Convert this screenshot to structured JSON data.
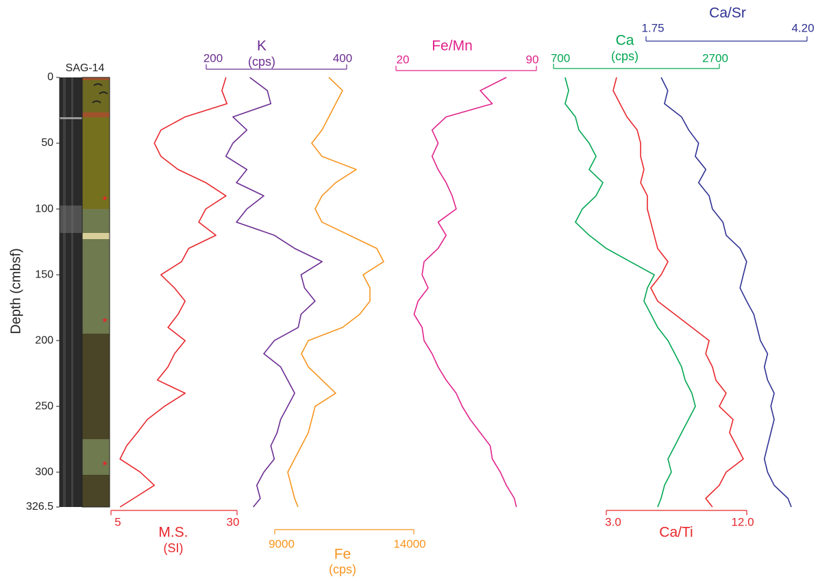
{
  "chart_data": {
    "type": "line",
    "core_label": "SAG-14",
    "ylabel": "Depth (cmbsf)",
    "ylim": [
      0,
      326.5
    ],
    "y_inverted": true,
    "yticks": [
      0,
      50,
      100,
      150,
      200,
      250,
      300,
      326.5
    ],
    "depth": [
      0,
      10,
      20,
      30,
      40,
      50,
      60,
      70,
      80,
      90,
      100,
      110,
      120,
      130,
      140,
      150,
      160,
      170,
      180,
      190,
      200,
      210,
      220,
      230,
      240,
      250,
      260,
      270,
      280,
      290,
      300,
      310,
      320,
      326.5
    ],
    "series": [
      {
        "name": "M.S.",
        "unit": "(SI)",
        "color": "#e8262b",
        "xlim": [
          5,
          30
        ],
        "xticks": [
          5,
          30
        ],
        "values": [
          27.8,
          27,
          28,
          19.7,
          14.9,
          13.6,
          14.9,
          18.3,
          23.8,
          27.8,
          23.8,
          22.4,
          25.8,
          20.4,
          19,
          14.9,
          17.6,
          19.7,
          18.3,
          16.3,
          19.7,
          17.6,
          16.3,
          14.2,
          19.7,
          15.6,
          12.2,
          10.2,
          8.1,
          6.8,
          10.8,
          13.6,
          9.5,
          6.8
        ]
      },
      {
        "name": "K",
        "unit": "(cps)",
        "color": "#6a2c91",
        "xlim": [
          200,
          400
        ],
        "xticks": [
          200,
          400
        ],
        "values": [
          262,
          287,
          292,
          238,
          258,
          238,
          228,
          258,
          243,
          282,
          258,
          243,
          297,
          326,
          365,
          335,
          340,
          355,
          335,
          331,
          297,
          282,
          306,
          316,
          326,
          316,
          306,
          301,
          292,
          297,
          282,
          272,
          277,
          267
        ]
      },
      {
        "name": "Fe",
        "unit": "(cps)",
        "color": "#f7941d",
        "xlim": [
          9000,
          14000
        ],
        "xticks": [
          9000,
          14000
        ],
        "values": [
          10946,
          11438,
          11192,
          10946,
          10700,
          10330,
          10700,
          11931,
          11192,
          10700,
          10453,
          10700,
          11685,
          12670,
          12916,
          12177,
          12424,
          12424,
          12054,
          11438,
          10207,
          9961,
          10207,
          10700,
          11192,
          10453,
          10330,
          10207,
          9961,
          9714,
          9468,
          9591,
          9714,
          9837
        ]
      },
      {
        "name": "Fe/Mn",
        "color": "#e0218a",
        "xlim": [
          20,
          90
        ],
        "xticks": [
          20,
          90
        ],
        "values": [
          75,
          62,
          68,
          45,
          38,
          41,
          38,
          41,
          45,
          48,
          50,
          41,
          45,
          41,
          34,
          33,
          36,
          31,
          29,
          33,
          34,
          38,
          41,
          45,
          50,
          53,
          57,
          62,
          67,
          68,
          72,
          75,
          79,
          80
        ]
      },
      {
        "name": "Ca",
        "unit": "(cps)",
        "color": "#00a651",
        "xlim": [
          700,
          2700
        ],
        "xticks": [
          700,
          2700
        ],
        "values": [
          840,
          882,
          840,
          964,
          1006,
          1130,
          1212,
          1130,
          1295,
          1212,
          1047,
          964,
          1130,
          1336,
          1626,
          1915,
          1832,
          1791,
          1874,
          1956,
          2080,
          2163,
          2245,
          2287,
          2369,
          2411,
          2328,
          2245,
          2163,
          2080,
          2121,
          2039,
          1997,
          1956
        ]
      },
      {
        "name": "Ca/Sr",
        "color": "#2e3192",
        "xlim": [
          1.75,
          4.2
        ],
        "xticks": [
          1.75,
          {
            "value": 4.2,
            "label": "4.20"
          }
        ],
        "values": [
          1.98,
          2.08,
          2.03,
          2.29,
          2.4,
          2.55,
          2.5,
          2.66,
          2.55,
          2.71,
          2.76,
          2.92,
          2.97,
          3.18,
          3.28,
          3.23,
          3.18,
          3.28,
          3.39,
          3.44,
          3.49,
          3.6,
          3.55,
          3.6,
          3.7,
          3.65,
          3.7,
          3.65,
          3.6,
          3.55,
          3.6,
          3.7,
          3.91,
          3.96
        ]
      },
      {
        "name": "Ca/Ti",
        "color": "#e8262b",
        "xlim": [
          3,
          12
        ],
        "xticks": [
          {
            "value": 3,
            "label": "3.0"
          },
          {
            "value": 12,
            "label": "12.0"
          }
        ],
        "values": [
          3.66,
          3.44,
          3.88,
          4.32,
          4.98,
          5.2,
          5.2,
          5.41,
          5.2,
          5.63,
          5.63,
          5.85,
          6.07,
          6.29,
          6.95,
          6.51,
          5.85,
          6.29,
          7.39,
          8.49,
          9.59,
          9.37,
          9.8,
          10.02,
          10.68,
          10.24,
          11.12,
          10.9,
          11.34,
          11.78,
          10.68,
          10.24,
          9.37,
          9.8
        ]
      }
    ]
  }
}
